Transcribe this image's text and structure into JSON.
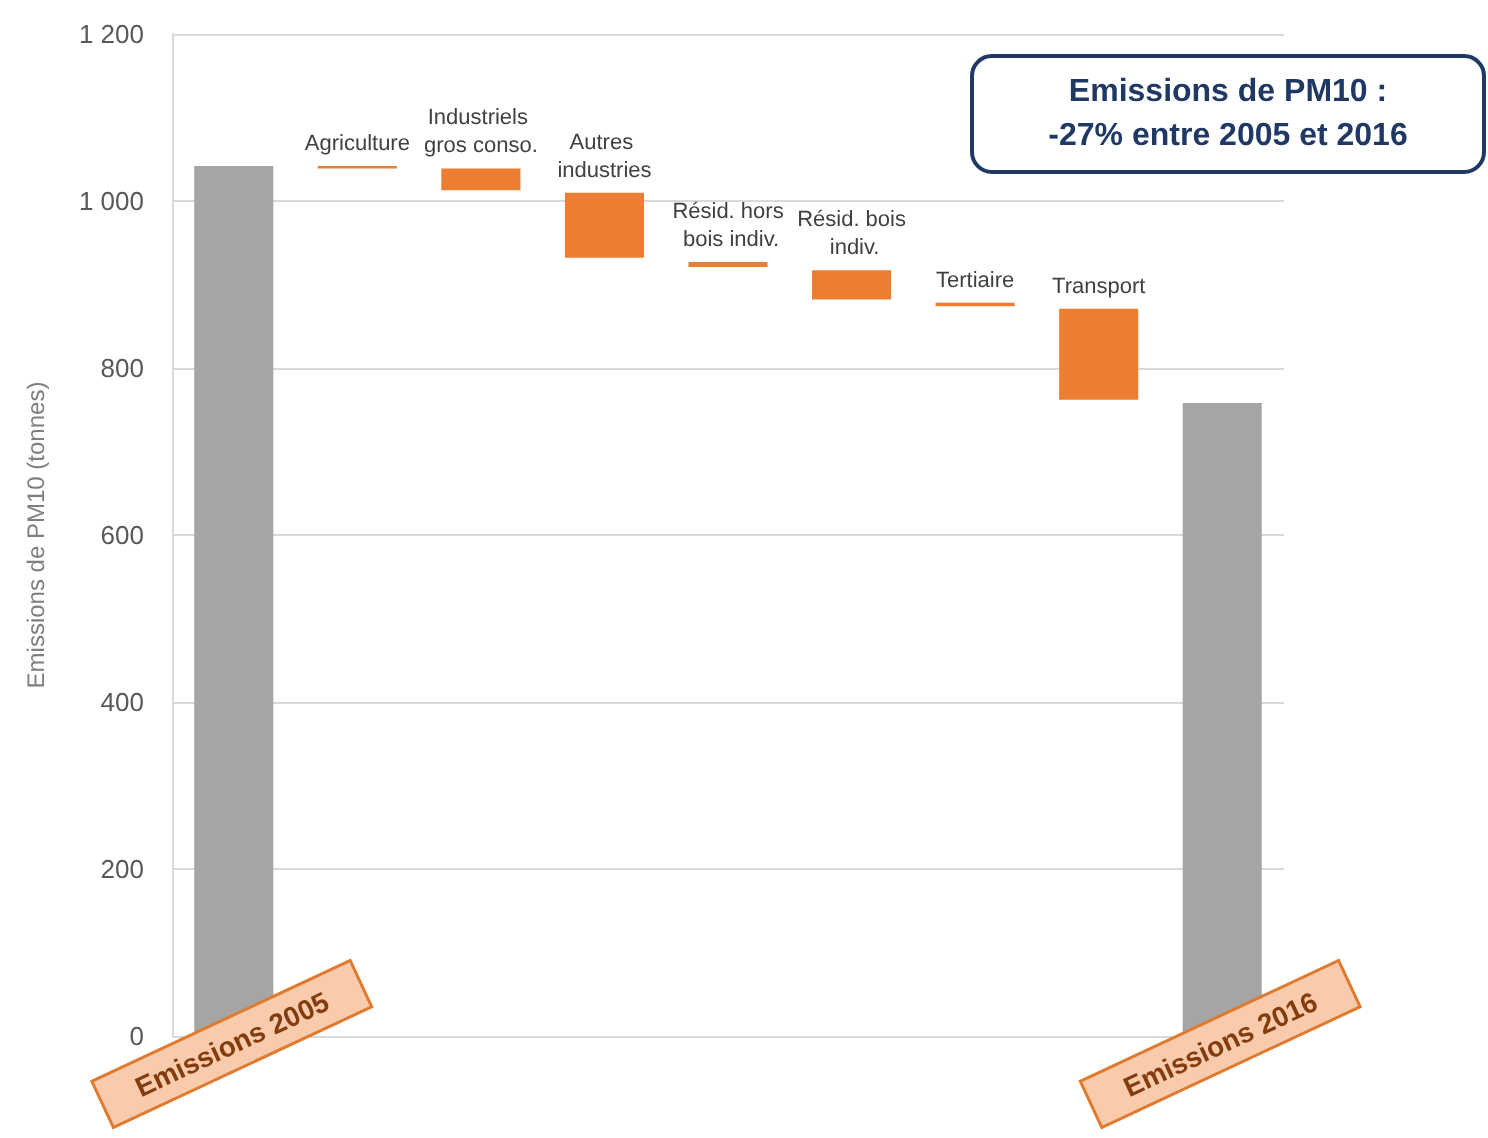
{
  "chart_data": {
    "type": "bar",
    "title": "Emissions de PM10 :",
    "subtitle": "-27% entre 2005 et 2016",
    "ylabel": "Emissions de PM10 (tonnes)",
    "categories": [
      "Emissions 2005",
      "Agriculture",
      "Industriels gros conso.",
      "Autres industries",
      "Résid. hors bois indiv.",
      "Résid. bois indiv.",
      "Tertiaire",
      "Transport",
      "Emissions 2016"
    ],
    "values": [
      1042,
      -3,
      -26,
      -78,
      -6,
      -35,
      -4,
      -109,
      758
    ],
    "base": [
      0,
      1042,
      1039,
      1010,
      927,
      917,
      878,
      871,
      0
    ],
    "colors": [
      "#a5a5a5",
      "#ed7d31",
      "#ed7d31",
      "#ed7d31",
      "#ed7d31",
      "#ed7d31",
      "#ed7d31",
      "#ed7d31",
      "#a5a5a5"
    ],
    "ylim": [
      0,
      1200
    ],
    "yticks": [
      0,
      200,
      400,
      600,
      800,
      {
        "value": 1000,
        "label": "1 000"
      },
      {
        "value": 1200,
        "label": "1 200"
      }
    ],
    "grid": "y"
  }
}
